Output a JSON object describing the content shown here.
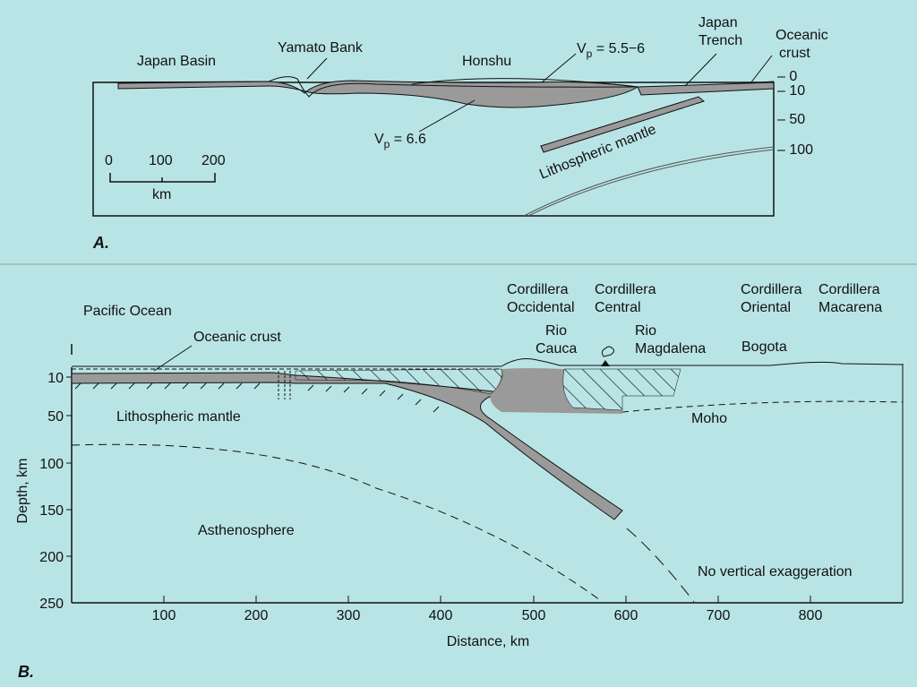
{
  "panel_a": {
    "letter": "A.",
    "labels": {
      "japan_basin": "Japan Basin",
      "yamato_bank": "Yamato Bank",
      "honshu": "Honshu",
      "vp_upper": "5.5−6",
      "vp_lower": "6.6",
      "vp_symbol": "V",
      "vp_sub": "p",
      "vp_eq": " = ",
      "japan": "Japan",
      "trench": "Trench",
      "oceanic": "Oceanic",
      "crust": "crust",
      "lithospheric_mantle": "Lithospheric mantle"
    },
    "depth_ticks": [
      "0",
      "10",
      "50",
      "100"
    ],
    "scale_bar": {
      "ticks": [
        "0",
        "100",
        "200"
      ],
      "unit": "km"
    }
  },
  "panel_b": {
    "letter": "B.",
    "labels": {
      "pacific_ocean": "Pacific Ocean",
      "oceanic_crust": "Oceanic crust",
      "lithospheric_mantle": "Lithospheric mantle",
      "asthenosphere": "Asthenosphere",
      "cordillera_occidental": [
        "Cordillera",
        "Occidental"
      ],
      "cordillera_central": [
        "Cordillera",
        "Central"
      ],
      "cordillera_oriental": [
        "Cordillera",
        "Oriental"
      ],
      "cordillera_macarena": [
        "Cordillera",
        "Macarena"
      ],
      "rio_cauca": [
        "Rio",
        "Cauca"
      ],
      "rio_magdalena": [
        "Rio",
        "Magdalena"
      ],
      "bogota": "Bogota",
      "moho": "Moho",
      "no_vertical_exaggeration": "No vertical exaggeration"
    },
    "y_axis": {
      "label": "Depth, km",
      "ticks": [
        "10",
        "50",
        "100",
        "150",
        "200",
        "250"
      ]
    },
    "x_axis": {
      "label": "Distance, km",
      "ticks": [
        "100",
        "200",
        "300",
        "400",
        "500",
        "600",
        "700",
        "800"
      ]
    }
  }
}
